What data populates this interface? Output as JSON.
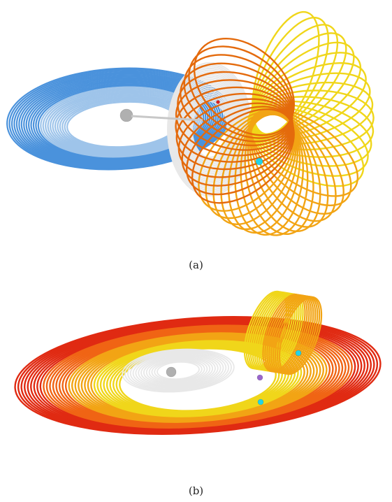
{
  "figure": {
    "panels": [
      {
        "label": "(a)",
        "palette": [
          "#4a92dc",
          "#e8e8e8",
          "#f0d61a",
          "#f2a414",
          "#e46a0c"
        ]
      },
      {
        "label": "(b)",
        "palette": [
          "#e8e8e8",
          "#f0d61a",
          "#f2a414",
          "#f06414",
          "#e02a12"
        ]
      }
    ],
    "colors": {
      "seed_gray": "#b0b0b0",
      "seed_cyan": "#22d3e8",
      "seed_red": "#e02020",
      "seed_violet": "#9966cc"
    }
  }
}
